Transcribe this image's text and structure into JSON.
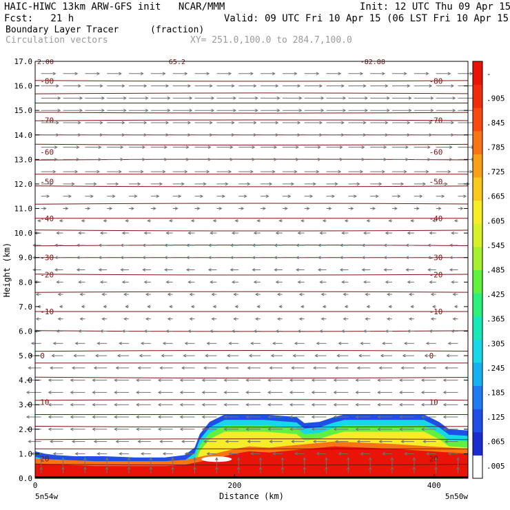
{
  "header": {
    "title_left": "HAIC-HIWC 13km ARW-GFS init   NCAR/MMM",
    "init": "Init: 12 UTC Thu 09 Apr 15",
    "fcst": "Fcst:   21 h",
    "valid": "Valid: 09 UTC Fri 10 Apr 15 (06 LST Fri 10 Apr 15)",
    "field": "Boundary Layer Tracer",
    "field_units": "(fraction)",
    "vectors": "Circulation vectors",
    "xy": "XY= 251.0,100.0 to 284.7,100.0"
  },
  "colors": {
    "fill_scale": [
      "#ffffff",
      "#1a2bd0",
      "#1f4fe6",
      "#1e7cf0",
      "#17b0f0",
      "#16d8e8",
      "#18e8b8",
      "#2cf07a",
      "#62f040",
      "#a6f030",
      "#d8f02a",
      "#f6ec28",
      "#f8c81e",
      "#f8a018",
      "#f87414",
      "#f84a10",
      "#f02a0c",
      "#e81408"
    ],
    "contour": "#7a1010",
    "vector": "#707070"
  },
  "chart_data": {
    "type": "heatmap",
    "xlabel": "Distance (km)",
    "ylabel": "Height (km)",
    "xlim": [
      0,
      434
    ],
    "ylim": [
      0,
      17
    ],
    "x_ticks": [
      0,
      200,
      400
    ],
    "y_ticks": [
      "0.0",
      "1.0",
      "2.0",
      "3.0",
      "4.0",
      "5.0",
      "6.0",
      "7.0",
      "8.0",
      "9.0",
      "10.0",
      "11.0",
      "12.0",
      "13.0",
      "14.0",
      "15.0",
      "16.0",
      "17.0"
    ],
    "x_end_labels": [
      "5n54w",
      "5n50w"
    ],
    "colorbar_labels": [
      ".005",
      ".065",
      ".125",
      ".185",
      ".245",
      ".305",
      ".365",
      ".425",
      ".485",
      ".545",
      ".605",
      ".665",
      ".725",
      ".785",
      ".845",
      ".905",
      "-"
    ],
    "tracer_region": {
      "top_km": [
        [
          0,
          1.1
        ],
        [
          10,
          1.0
        ],
        [
          20,
          0.95
        ],
        [
          40,
          0.9
        ],
        [
          70,
          0.9
        ],
        [
          100,
          0.85
        ],
        [
          130,
          0.85
        ],
        [
          150,
          0.95
        ],
        [
          160,
          1.25
        ],
        [
          165,
          1.8
        ],
        [
          175,
          2.3
        ],
        [
          190,
          2.6
        ],
        [
          230,
          2.6
        ],
        [
          262,
          2.5
        ],
        [
          270,
          2.25
        ],
        [
          285,
          2.3
        ],
        [
          300,
          2.5
        ],
        [
          310,
          2.6
        ],
        [
          390,
          2.6
        ],
        [
          405,
          2.3
        ],
        [
          415,
          2.0
        ],
        [
          434,
          1.95
        ]
      ],
      "blue_band_bottom_km": [
        [
          175,
          2.0
        ],
        [
          190,
          2.3
        ],
        [
          230,
          2.3
        ],
        [
          262,
          2.1
        ],
        [
          300,
          2.2
        ],
        [
          390,
          2.2
        ],
        [
          434,
          1.6
        ]
      ],
      "core_top_km": [
        [
          0,
          0.8
        ],
        [
          60,
          0.7
        ],
        [
          130,
          0.7
        ],
        [
          150,
          0.75
        ],
        [
          180,
          1.0
        ],
        [
          200,
          1.2
        ],
        [
          215,
          1.3
        ],
        [
          235,
          1.25
        ],
        [
          260,
          1.35
        ],
        [
          300,
          1.5
        ],
        [
          360,
          1.4
        ],
        [
          434,
          1.2
        ]
      ]
    },
    "temperature_contours": [
      {
        "label": "-30",
        "y_km": 9.0
      },
      {
        "label": "-20",
        "y_km": 8.3
      },
      {
        "label": "-10",
        "y_km": 6.8
      },
      {
        "label": "0",
        "y_km": 5.0
      },
      {
        "label": "10",
        "y_km": 3.1
      },
      {
        "label": "20",
        "y_km": 0.8
      },
      {
        "label": "-40",
        "y_km": 10.6
      },
      {
        "label": "-50",
        "y_km": 12.1
      },
      {
        "label": "-60",
        "y_km": 13.3
      },
      {
        "label": "-70",
        "y_km": 14.6
      },
      {
        "label": "-80",
        "y_km": 16.2
      }
    ],
    "theta_contours_km": [
      0.55,
      1.2,
      1.6,
      2.1,
      2.6,
      3.2,
      4.1,
      4.7,
      5.2,
      6.0,
      6.8,
      7.6,
      8.3,
      9.0,
      9.5,
      10.1,
      10.6,
      11.2,
      11.9,
      12.4,
      13.0,
      13.6,
      14.0,
      14.6,
      14.9,
      15.3,
      15.7,
      16.2
    ],
    "top_labels": [
      "2.00",
      "65.2",
      "-82.88"
    ],
    "wind_rows": [
      {
        "y_km": 16.5,
        "u": 9,
        "w": 0
      },
      {
        "y_km": 16.0,
        "u": 11,
        "w": 0
      },
      {
        "y_km": 15.5,
        "u": 12,
        "w": 0
      },
      {
        "y_km": 15.0,
        "u": 12,
        "w": 0
      },
      {
        "y_km": 14.5,
        "u": 11,
        "w": 0
      },
      {
        "y_km": 14.0,
        "u": 11,
        "w": 0
      },
      {
        "y_km": 13.5,
        "u": 10,
        "w": 0
      },
      {
        "y_km": 13.0,
        "u": 10,
        "w": 0
      },
      {
        "y_km": 12.5,
        "u": 9,
        "w": 0
      },
      {
        "y_km": 12.0,
        "u": 7,
        "w": 0
      },
      {
        "y_km": 11.5,
        "u": 5,
        "w": 0
      },
      {
        "y_km": 11.0,
        "u": 3,
        "w": 0
      },
      {
        "y_km": 10.5,
        "u": -2,
        "w": 1
      },
      {
        "y_km": 10.0,
        "u": -4,
        "w": 0
      },
      {
        "y_km": 9.5,
        "u": -5,
        "w": 0
      },
      {
        "y_km": 9.0,
        "u": -5,
        "w": 0
      },
      {
        "y_km": 8.5,
        "u": -5,
        "w": 0
      },
      {
        "y_km": 8.0,
        "u": -4,
        "w": 0
      },
      {
        "y_km": 7.5,
        "u": -3,
        "w": 0
      },
      {
        "y_km": 7.0,
        "u": -2,
        "w": 0
      },
      {
        "y_km": 6.5,
        "u": -3,
        "w": 0
      },
      {
        "y_km": 6.0,
        "u": -4,
        "w": 0
      },
      {
        "y_km": 5.5,
        "u": -6,
        "w": 0
      },
      {
        "y_km": 5.0,
        "u": -7,
        "w": 0
      },
      {
        "y_km": 4.5,
        "u": -8,
        "w": 0
      },
      {
        "y_km": 4.0,
        "u": -9,
        "w": 0
      },
      {
        "y_km": 3.5,
        "u": -9,
        "w": 0
      },
      {
        "y_km": 3.0,
        "u": -9,
        "w": 0
      },
      {
        "y_km": 2.5,
        "u": -9,
        "w": 0
      },
      {
        "y_km": 2.0,
        "u": -9,
        "w": 0
      },
      {
        "y_km": 1.5,
        "u": -8,
        "w": 0
      },
      {
        "y_km": 1.0,
        "u": -6,
        "w": 0
      },
      {
        "y_km": 0.5,
        "u": 0,
        "w": 4
      },
      {
        "y_km": 0.2,
        "u": 0,
        "w": 3
      }
    ]
  }
}
